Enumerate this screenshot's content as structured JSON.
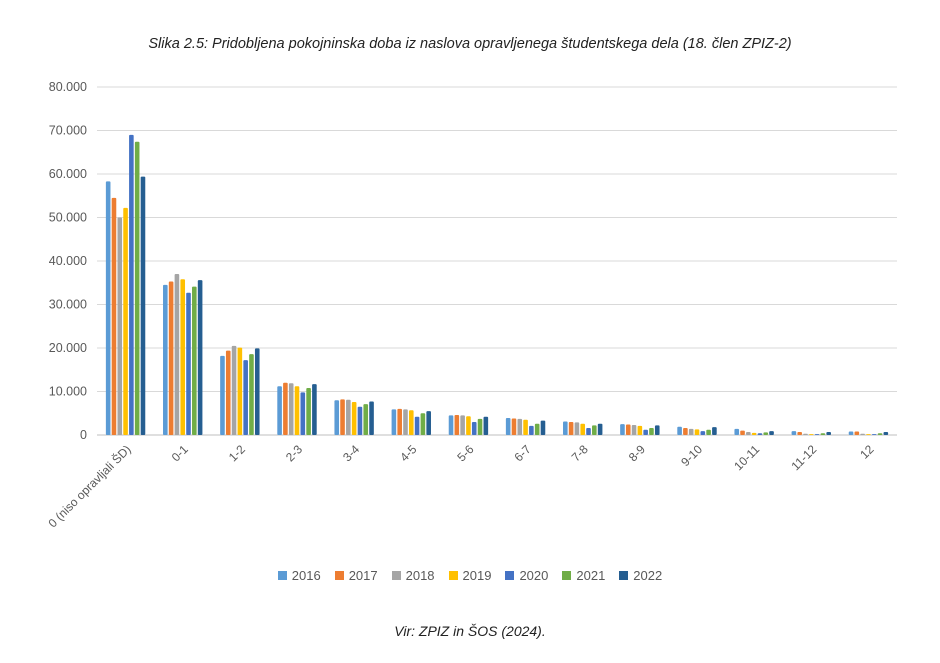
{
  "figure": {
    "title": "Slika 2.5: Pridobljena pokojninska doba iz naslova opravljenega študentskega dela (18. člen ZPIZ-2)",
    "source": "Vir: ZPIZ in ŠOS (2024)."
  },
  "chart_data": {
    "type": "bar",
    "title": "Slika 2.5: Pridobljena pokojninska doba iz naslova opravljenega študentskega dela (18. člen ZPIZ-2)",
    "xlabel": "",
    "ylabel": "",
    "ylim": [
      0,
      80000
    ],
    "yticks": [
      0,
      10000,
      20000,
      30000,
      40000,
      50000,
      60000,
      70000,
      80000
    ],
    "ytick_labels": [
      "0",
      "10.000",
      "20.000",
      "30.000",
      "40.000",
      "50.000",
      "60.000",
      "70.000",
      "80.000"
    ],
    "grid": true,
    "legend_position": "bottom",
    "categories": [
      "0 (niso opravljali ŠD)",
      "0-1",
      "1-2",
      "2-3",
      "3-4",
      "4-5",
      "5-6",
      "6-7",
      "7-8",
      "8-9",
      "9-10",
      "10-11",
      "11-12",
      "12"
    ],
    "series": [
      {
        "name": "2016",
        "color": "#5B9BD5",
        "values": [
          58300,
          34500,
          18200,
          11200,
          8000,
          5900,
          4500,
          3900,
          3100,
          2500,
          1900,
          1400,
          900,
          800
        ]
      },
      {
        "name": "2017",
        "color": "#ED7D31",
        "values": [
          54500,
          35300,
          19400,
          12000,
          8200,
          6000,
          4600,
          3800,
          3000,
          2400,
          1600,
          1000,
          700,
          800
        ]
      },
      {
        "name": "2018",
        "color": "#A5A5A5",
        "values": [
          50000,
          37000,
          20500,
          11900,
          8100,
          5900,
          4500,
          3700,
          2900,
          2300,
          1400,
          700,
          300,
          300
        ]
      },
      {
        "name": "2019",
        "color": "#FFC000",
        "values": [
          52200,
          35800,
          20100,
          11200,
          7600,
          5700,
          4300,
          3500,
          2600,
          2100,
          1300,
          500,
          200,
          200
        ]
      },
      {
        "name": "2020",
        "color": "#4472C4",
        "values": [
          69000,
          32700,
          17200,
          9800,
          6500,
          4200,
          3000,
          2100,
          1600,
          1200,
          900,
          400,
          200,
          200
        ]
      },
      {
        "name": "2021",
        "color": "#70AD47",
        "values": [
          67400,
          34100,
          18600,
          10800,
          7100,
          5000,
          3700,
          2600,
          2200,
          1600,
          1200,
          600,
          400,
          400
        ]
      },
      {
        "name": "2022",
        "color": "#255E91",
        "values": [
          59400,
          35600,
          19900,
          11700,
          7700,
          5500,
          4200,
          3300,
          2600,
          2200,
          1800,
          900,
          700,
          700
        ]
      }
    ]
  }
}
